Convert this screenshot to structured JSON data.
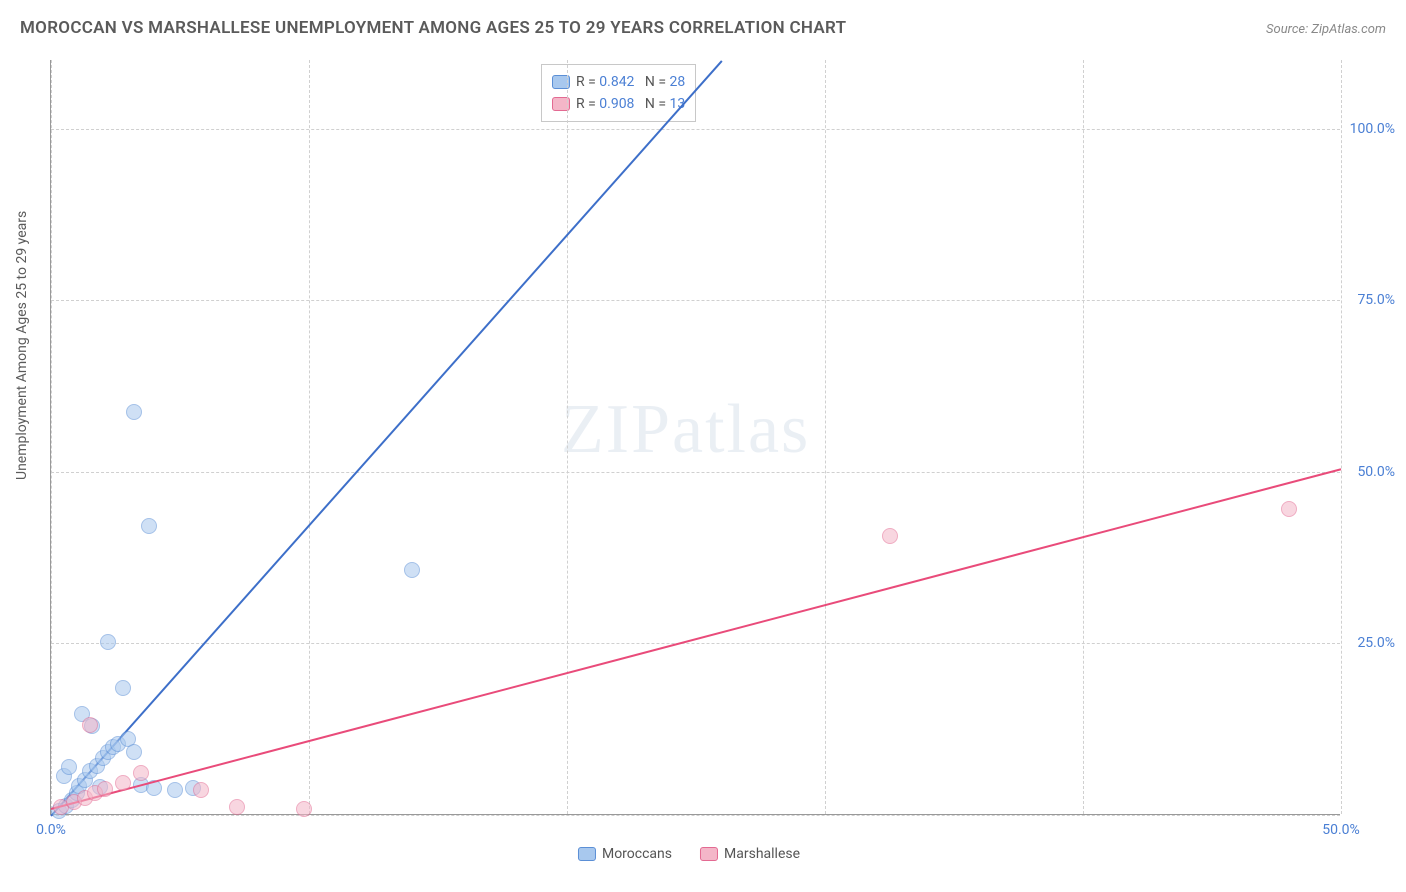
{
  "title": "MOROCCAN VS MARSHALLESE UNEMPLOYMENT AMONG AGES 25 TO 29 YEARS CORRELATION CHART",
  "source": "Source: ZipAtlas.com",
  "y_axis_label": "Unemployment Among Ages 25 to 29 years",
  "chart": {
    "type": "scatter",
    "xlim": [
      0,
      50
    ],
    "ylim": [
      0,
      110
    ],
    "x_ticks": [
      {
        "v": 0,
        "label": "0.0%"
      },
      {
        "v": 50,
        "label": "50.0%"
      }
    ],
    "y_ticks": [
      {
        "v": 25,
        "label": "25.0%"
      },
      {
        "v": 50,
        "label": "50.0%"
      },
      {
        "v": 75,
        "label": "75.0%"
      },
      {
        "v": 100,
        "label": "100.0%"
      }
    ],
    "grid_x_positions": [
      0,
      10,
      20,
      30,
      40,
      50
    ],
    "grid_y_positions": [
      0,
      25,
      50,
      75,
      100
    ],
    "grid_color": "#d8d8d8",
    "background_color": "#ffffff",
    "marker_radius": 8,
    "series": [
      {
        "name": "Moroccans",
        "color_fill": "#a8c8ee",
        "color_stroke": "#5b8fd6",
        "fill_opacity": 0.55,
        "line_color": "#3d6fc9",
        "line_width": 2,
        "R": "0.842",
        "N": "28",
        "trend": {
          "x1": 0,
          "y1": 0,
          "x2": 26,
          "y2": 110
        },
        "points": [
          [
            0.3,
            0.5
          ],
          [
            0.6,
            1.2
          ],
          [
            0.8,
            2.0
          ],
          [
            1.0,
            3.0
          ],
          [
            1.1,
            4.1
          ],
          [
            1.3,
            5.0
          ],
          [
            1.5,
            6.2
          ],
          [
            1.8,
            7.0
          ],
          [
            2.0,
            8.2
          ],
          [
            2.2,
            9.1
          ],
          [
            2.4,
            9.8
          ],
          [
            2.6,
            10.2
          ],
          [
            3.0,
            11.0
          ],
          [
            3.2,
            9.0
          ],
          [
            0.5,
            5.5
          ],
          [
            0.7,
            6.8
          ],
          [
            1.9,
            4.0
          ],
          [
            3.5,
            4.2
          ],
          [
            4.0,
            3.8
          ],
          [
            4.8,
            3.5
          ],
          [
            5.5,
            3.8
          ],
          [
            2.8,
            18.4
          ],
          [
            2.2,
            25.0
          ],
          [
            3.8,
            42.0
          ],
          [
            3.2,
            58.5
          ],
          [
            1.2,
            14.5
          ],
          [
            14.0,
            35.5
          ],
          [
            1.6,
            12.8
          ]
        ]
      },
      {
        "name": "Marshallese",
        "color_fill": "#f4b6c8",
        "color_stroke": "#e36a92",
        "fill_opacity": 0.55,
        "line_color": "#e94b7a",
        "line_width": 2,
        "R": "0.908",
        "N": "13",
        "trend": {
          "x1": 0,
          "y1": 1,
          "x2": 50,
          "y2": 50.5
        },
        "points": [
          [
            0.4,
            1.0
          ],
          [
            0.9,
            1.8
          ],
          [
            1.3,
            2.4
          ],
          [
            1.7,
            3.0
          ],
          [
            2.1,
            3.6
          ],
          [
            2.8,
            4.5
          ],
          [
            1.5,
            13.0
          ],
          [
            3.5,
            6.0
          ],
          [
            5.8,
            3.5
          ],
          [
            7.2,
            1.0
          ],
          [
            9.8,
            0.8
          ],
          [
            32.5,
            40.5
          ],
          [
            48.0,
            44.5
          ]
        ]
      }
    ],
    "legend_top": {
      "label_R": "R =",
      "label_N": "N ="
    },
    "legend_bottom": [
      {
        "label": "Moroccans",
        "fill": "#a8c8ee",
        "stroke": "#5b8fd6"
      },
      {
        "label": "Marshallese",
        "fill": "#f4b6c8",
        "stroke": "#e36a92"
      }
    ]
  },
  "watermark": {
    "text_bold": "ZIP",
    "text_light": "atlas",
    "color": "#8fa8c8"
  }
}
